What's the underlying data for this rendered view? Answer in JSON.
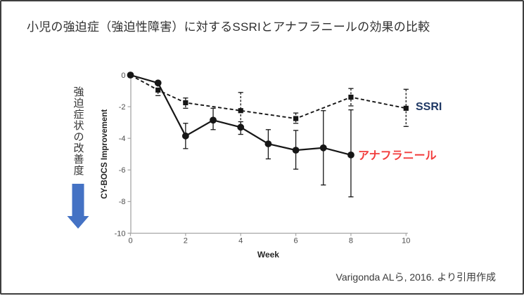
{
  "slide": {
    "title": "小児の強迫症（強迫性障害）に対するSSRIとアナフラニールの効果の比較",
    "left_axis_note": "強迫症状の改善度",
    "citation": "Varigonda ALら, 2016. より引用作成"
  },
  "colors": {
    "arrow_blue": "#4472c4",
    "ssri_label": "#1f3864",
    "anafranil_label": "#f23d3d",
    "series_black": "#161616",
    "axis_gray": "#a6a6a6",
    "tick_text": "#4d4d4d",
    "frame": "#3e3e3e"
  },
  "chart_data": {
    "type": "line",
    "title": "",
    "xlabel": "Week",
    "ylabel": "CY-BOCS Improvement",
    "xlim": [
      0,
      10
    ],
    "ylim": [
      -10,
      0
    ],
    "xticks": [
      0,
      2,
      4,
      6,
      8,
      10
    ],
    "yticks": [
      0,
      -2,
      -4,
      -6,
      -8,
      -10
    ],
    "grid": false,
    "legend_position": "inline-right",
    "series": [
      {
        "name": "SSRI",
        "label_color": "#1f3864",
        "line_style": "dashed",
        "marker": "square",
        "error_style": "dashed",
        "x": [
          0,
          1,
          2,
          4,
          6,
          8,
          10
        ],
        "y": [
          0,
          -0.95,
          -1.75,
          -2.25,
          -2.75,
          -1.4,
          -2.1
        ],
        "error_high": [
          0,
          -0.6,
          -1.45,
          -1.1,
          -2.4,
          -0.85,
          -0.9
        ],
        "error_low": [
          0,
          -1.3,
          -2.1,
          -3.35,
          -3.05,
          -1.95,
          -3.25
        ]
      },
      {
        "name": "アナフラニール",
        "label_color": "#f23d3d",
        "line_style": "solid",
        "marker": "circle",
        "error_style": "solid",
        "x": [
          0,
          1,
          2,
          3,
          4,
          5,
          6,
          7,
          8
        ],
        "y": [
          0,
          -0.5,
          -3.85,
          -2.85,
          -3.3,
          -4.35,
          -4.75,
          -4.6,
          -5.05
        ],
        "error_high": [
          0,
          -0.5,
          -3.05,
          -2.1,
          -2.95,
          -3.45,
          -3.5,
          -2.25,
          -2.2
        ],
        "error_low": [
          0,
          -0.5,
          -4.65,
          -3.45,
          -3.75,
          -5.3,
          -5.95,
          -6.95,
          -7.7
        ]
      }
    ]
  }
}
